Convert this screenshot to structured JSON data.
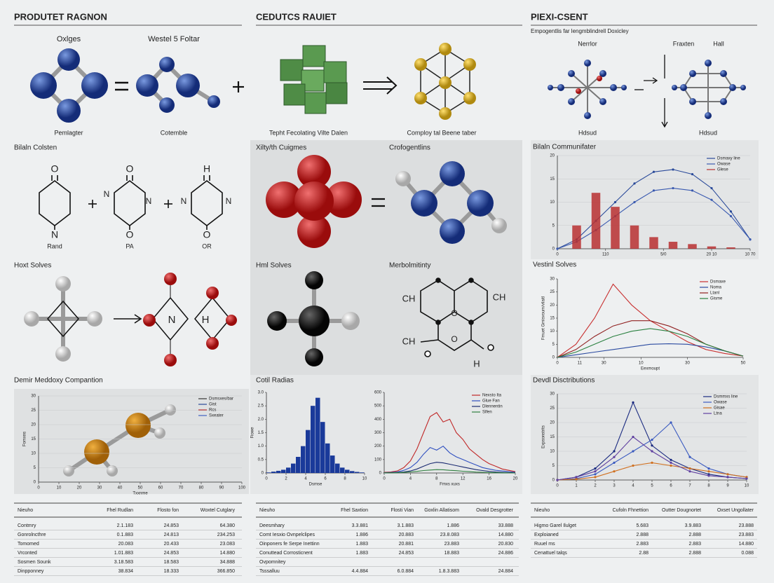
{
  "header": {
    "titles": [
      "PRODUTET RAGNON",
      "CEDUTCS RAUIET",
      "PIEXI-CSENT"
    ],
    "subtitle": "Empogentlis far lengmblindrell Doxicley"
  },
  "labels": [
    "Oxlges",
    "Westel 5 Foltar",
    "Pemlagter",
    "Cotemble",
    "Tepht Fecolating Vilte Dalen",
    "Comploy tal Beene taber",
    "Nerrlor",
    "Fraxten",
    "Hall",
    "Hdsud",
    "Hdsud",
    "Bilaln Colsten",
    "Rand",
    "PA",
    "OR",
    "Xilty/th Cuigmes",
    "Crofogentlins",
    "Hoxt Solves",
    "Hml Solves",
    "Merbolmitinty",
    "O",
    "N",
    "O",
    "O",
    "N",
    "N",
    "H",
    "O",
    "N",
    "N",
    "N",
    "H",
    "CH",
    "CH",
    "O",
    "CH",
    "O",
    "H"
  ],
  "chart_data": [
    {
      "type": "line",
      "title": "Bilaln Communifater",
      "x": [
        0,
        10,
        20,
        30,
        40,
        50,
        60,
        70,
        80,
        90,
        100
      ],
      "xlim": [
        0,
        100
      ],
      "xticks": [
        0,
        {
          "value": 25,
          "label": "110"
        },
        {
          "value": 55,
          "label": "5/0"
        },
        {
          "value": 80,
          "label": "20 10"
        },
        {
          "value": 100,
          "label": "10 70"
        }
      ],
      "ylim": [
        0,
        20
      ],
      "yticks": [
        0,
        5,
        10,
        15,
        20
      ],
      "grid": true,
      "markers": true,
      "series": [
        {
          "name": "Dsmaxy line",
          "color": "#2a4a9a",
          "values": [
            0,
            2,
            6,
            10,
            14,
            16.5,
            17,
            16,
            13,
            8,
            2
          ]
        },
        {
          "name": "Owase",
          "color": "#3a5ab0",
          "values": [
            0,
            1.5,
            4,
            7,
            10,
            12.5,
            13,
            12.5,
            10.5,
            7,
            2
          ]
        },
        {
          "name": "Glese",
          "color": "#b83030",
          "type": "bar",
          "values": [
            0,
            5,
            12,
            9,
            5,
            2.5,
            1.5,
            1,
            0.5,
            0.3,
            0
          ]
        }
      ]
    },
    {
      "type": "line",
      "title": "Vestinl Solves",
      "xlabel": "Eexmoupt",
      "ylabel": "Fmuet Gmisvoum/vilaitl",
      "x": [
        0,
        10,
        20,
        30,
        40,
        50,
        60,
        70,
        80,
        90,
        100
      ],
      "xlim": [
        0,
        100
      ],
      "xticks": [
        0,
        {
          "value": 12,
          "label": "11"
        },
        {
          "value": 25,
          "label": "30"
        },
        {
          "value": 45,
          "label": "10"
        },
        {
          "value": 70,
          "label": "30"
        },
        {
          "value": 100,
          "label": "50"
        }
      ],
      "ylim": [
        0,
        30
      ],
      "yticks": [
        0,
        5,
        10,
        15,
        20,
        25,
        30
      ],
      "grid": false,
      "series": [
        {
          "name": "Dsmaxe",
          "color": "#c83030",
          "values": [
            0,
            5,
            15,
            28,
            20,
            14,
            10,
            6,
            3,
            1.5,
            0.5
          ]
        },
        {
          "name": "Noma",
          "color": "#2a4aa0",
          "values": [
            0,
            1,
            2,
            3,
            4,
            5,
            5.2,
            5,
            4,
            2.5,
            0.5
          ]
        },
        {
          "name": "Ltanl",
          "color": "#902020",
          "values": [
            0,
            3,
            8,
            12,
            14,
            14,
            12,
            9,
            5,
            2.5,
            0.5
          ]
        },
        {
          "name": "Gisme",
          "color": "#2a8040",
          "values": [
            0,
            2,
            5,
            8,
            10,
            11,
            10,
            8,
            5,
            2.5,
            0.5
          ]
        }
      ]
    },
    {
      "type": "axes",
      "title": "Demir Meddoxy Compantion",
      "xlabel": "Txxnme",
      "ylabel": "Fomxns",
      "xlim": [
        0,
        100
      ],
      "xticks": [
        0,
        10,
        20,
        30,
        40,
        50,
        60,
        70,
        80,
        90,
        100
      ],
      "ylim": [
        0,
        30
      ],
      "yticks": [
        0,
        5,
        10,
        15,
        20,
        25,
        30
      ],
      "grid": true,
      "legend": [
        {
          "name": "Dsmsxes/bar",
          "color": "#333333"
        },
        {
          "name": "Gist",
          "color": "#2a4a9a"
        },
        {
          "name": "Rcs",
          "color": "#b83030"
        },
        {
          "name": "Sxeater",
          "color": "#4060c0"
        }
      ]
    },
    {
      "type": "histogram",
      "title": "Cotil Radias",
      "xlabel": "Dsmse",
      "ylabel": "Fiowe",
      "bins": [
        0,
        0.5,
        1,
        1.5,
        2,
        2.5,
        3,
        3.5,
        4,
        4.5,
        5,
        5.5,
        6,
        6.5,
        7,
        7.5,
        8,
        8.5,
        9,
        9.5,
        10
      ],
      "counts": [
        0.02,
        0.05,
        0.08,
        0.12,
        0.2,
        0.35,
        0.6,
        1.0,
        1.6,
        2.5,
        2.8,
        1.9,
        1.1,
        0.65,
        0.35,
        0.2,
        0.12,
        0.07,
        0.04,
        0.02
      ],
      "color": "#1a3a9a",
      "xlim": [
        0,
        10
      ],
      "xticks": [
        0,
        2,
        4,
        6,
        8,
        10
      ],
      "ylim": [
        0,
        3
      ],
      "yticks": [
        0,
        0.5,
        {
          "value": 1,
          "label": "1.0"
        },
        1.5,
        {
          "value": 2,
          "label": "2.0"
        },
        2.5,
        {
          "value": 3,
          "label": "3.0"
        }
      ],
      "grid": false
    },
    {
      "type": "line",
      "xlabel": "Fmxs xuxs",
      "x": [
        0,
        1,
        2,
        3,
        4,
        5,
        6,
        7,
        8,
        9,
        10,
        11,
        12,
        13,
        14,
        15,
        16,
        17,
        18,
        19,
        20
      ],
      "xlim": [
        0,
        20
      ],
      "xticks": [
        0,
        4,
        8,
        12,
        16,
        20
      ],
      "ylim": [
        0,
        600
      ],
      "yticks": [
        0,
        100,
        200,
        300,
        400,
        500,
        600
      ],
      "grid": false,
      "series": [
        {
          "name": "Nexsto Ita",
          "color": "#c02828",
          "values": [
            5,
            8,
            15,
            40,
            90,
            180,
            300,
            420,
            450,
            380,
            400,
            300,
            250,
            180,
            140,
            100,
            70,
            50,
            30,
            20,
            10
          ]
        },
        {
          "name": "Glue Fan",
          "color": "#3050c0",
          "values": [
            2,
            4,
            8,
            20,
            40,
            80,
            140,
            190,
            170,
            200,
            150,
            120,
            100,
            80,
            60,
            40,
            30,
            20,
            15,
            10,
            5
          ]
        },
        {
          "name": "Dlennentin",
          "color": "#1a2a70",
          "values": [
            1,
            2,
            4,
            8,
            15,
            30,
            50,
            70,
            80,
            75,
            65,
            55,
            45,
            35,
            25,
            18,
            12,
            8,
            5,
            3,
            2
          ]
        },
        {
          "name": "Slfen",
          "color": "#308040",
          "values": [
            1,
            1,
            2,
            4,
            8,
            12,
            18,
            22,
            25,
            24,
            20,
            17,
            13,
            10,
            7,
            5,
            3,
            2,
            1,
            1,
            0
          ]
        }
      ]
    },
    {
      "type": "line",
      "title": "Devdl Disctributions",
      "ylabel": "Expsonstrits",
      "x": [
        0,
        1,
        2,
        3,
        4,
        5,
        6,
        7,
        8,
        9,
        10
      ],
      "xlim": [
        0,
        10
      ],
      "xticks": [
        0,
        1,
        2,
        3,
        4,
        5,
        6,
        7,
        8,
        9,
        10
      ],
      "ylim": [
        0,
        30
      ],
      "yticks": [
        0,
        5,
        10,
        15,
        20,
        25,
        30
      ],
      "grid": true,
      "markers": true,
      "series": [
        {
          "name": "Dsmmxs line",
          "color": "#1a2a80",
          "values": [
            0,
            1,
            4,
            10,
            27,
            12,
            7,
            4,
            2,
            1,
            0.5
          ]
        },
        {
          "name": "Owase",
          "color": "#3a5ac0",
          "values": [
            0,
            0.5,
            2,
            6,
            10,
            14,
            20,
            8,
            4,
            2,
            1
          ]
        },
        {
          "name": "Gisae",
          "color": "#d07020",
          "values": [
            0,
            0.3,
            1,
            3,
            5,
            6,
            5,
            4,
            3,
            2,
            1
          ]
        },
        {
          "name": "Ltna",
          "color": "#6040a0",
          "values": [
            0,
            1,
            3,
            8,
            15,
            10,
            6,
            3,
            1.5,
            1,
            0.5
          ]
        }
      ]
    }
  ],
  "tables": [
    {
      "header": [
        "Nieuho",
        "Fhel Rudlan",
        "Flosto fon",
        "Woxtel Cutglary"
      ],
      "rows": [
        [
          "Contmry",
          "2.1.183",
          "24.853",
          "64.380"
        ],
        [
          "Gonrolncthre",
          "0.1.883",
          "24.813",
          "234.253"
        ],
        [
          "Tomomed",
          "20.083",
          "20.433",
          "23.083"
        ],
        [
          "Vrconted",
          "1.01.883",
          "24.853",
          "14.880"
        ],
        [
          "Sosmen Sounk",
          "3.18.583",
          "18.583",
          "34.888"
        ],
        [
          "Dinpponney",
          "38.834",
          "18.333",
          "366.850"
        ]
      ]
    },
    {
      "header": [
        "Nieuho",
        "Fhel Saxtion",
        "Flosti Vian",
        "Goxlin Allatisom",
        "Ovald Desgrotter"
      ],
      "rows": [
        [
          "Deesmhary",
          "3.3.881",
          "3.1.883",
          "1.886",
          "33.888"
        ],
        [
          "Comt Iesxio Ovnpelclipes",
          "1.886",
          "20.883",
          "23.8.083",
          "14.880"
        ],
        [
          "Oinponers fe Serpe Inettinn",
          "1.883",
          "20.881",
          "23.883",
          "20.830"
        ],
        [
          "Conuttead Corrosticnent",
          "1.883",
          "24.853",
          "18.883",
          "24.886"
        ],
        [
          "Ovpomnitey"
        ],
        [
          "Tsssalluu",
          "4.4.884",
          "6.0.884",
          "1.8.3.883",
          "24.884"
        ]
      ]
    },
    {
      "header": [
        "Nieuho",
        "Cufoln Fhnettion",
        "Outter Dougnortet",
        "Oxset Ungollater"
      ],
      "rows": [
        [
          "Higmo Garel Ilulget",
          "5.683",
          "3.9.883",
          "23.888"
        ],
        [
          "Exploianed",
          "2.888",
          "2.888",
          "23.883"
        ],
        [
          "Ruuel ms",
          "2.883",
          "2.883",
          "14.880"
        ],
        [
          "Cenattuel talqs",
          "2.88",
          "2.888",
          "0.088"
        ]
      ]
    }
  ]
}
